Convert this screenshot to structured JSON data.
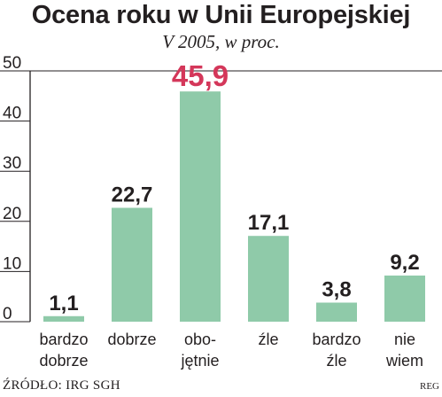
{
  "title": "Ocena roku w Unii Europejskiej",
  "subtitle": "V 2005, w proc.",
  "source": "ŹRÓDŁO: IRG SGH",
  "credit": "REG",
  "colors": {
    "bar": "#8fcaa9",
    "highlight_label": "#d4375a",
    "axis": "#231f20"
  },
  "chart_data": {
    "type": "bar",
    "categories": [
      [
        "bardzo",
        "dobrze"
      ],
      [
        "dobrze"
      ],
      [
        "obo-",
        "jętnie"
      ],
      [
        "źle"
      ],
      [
        "bardzo",
        "źle"
      ],
      [
        "nie",
        "wiem"
      ]
    ],
    "values": [
      1.1,
      22.7,
      45.9,
      17.1,
      3.8,
      9.2
    ],
    "value_labels": [
      "1,1",
      "22,7",
      "45,9",
      "17,1",
      "3,8",
      "9,2"
    ],
    "highlight_index": 2,
    "yticks": [
      0,
      10,
      20,
      30,
      40,
      50
    ],
    "ylim": [
      0,
      50
    ],
    "grid": false
  }
}
